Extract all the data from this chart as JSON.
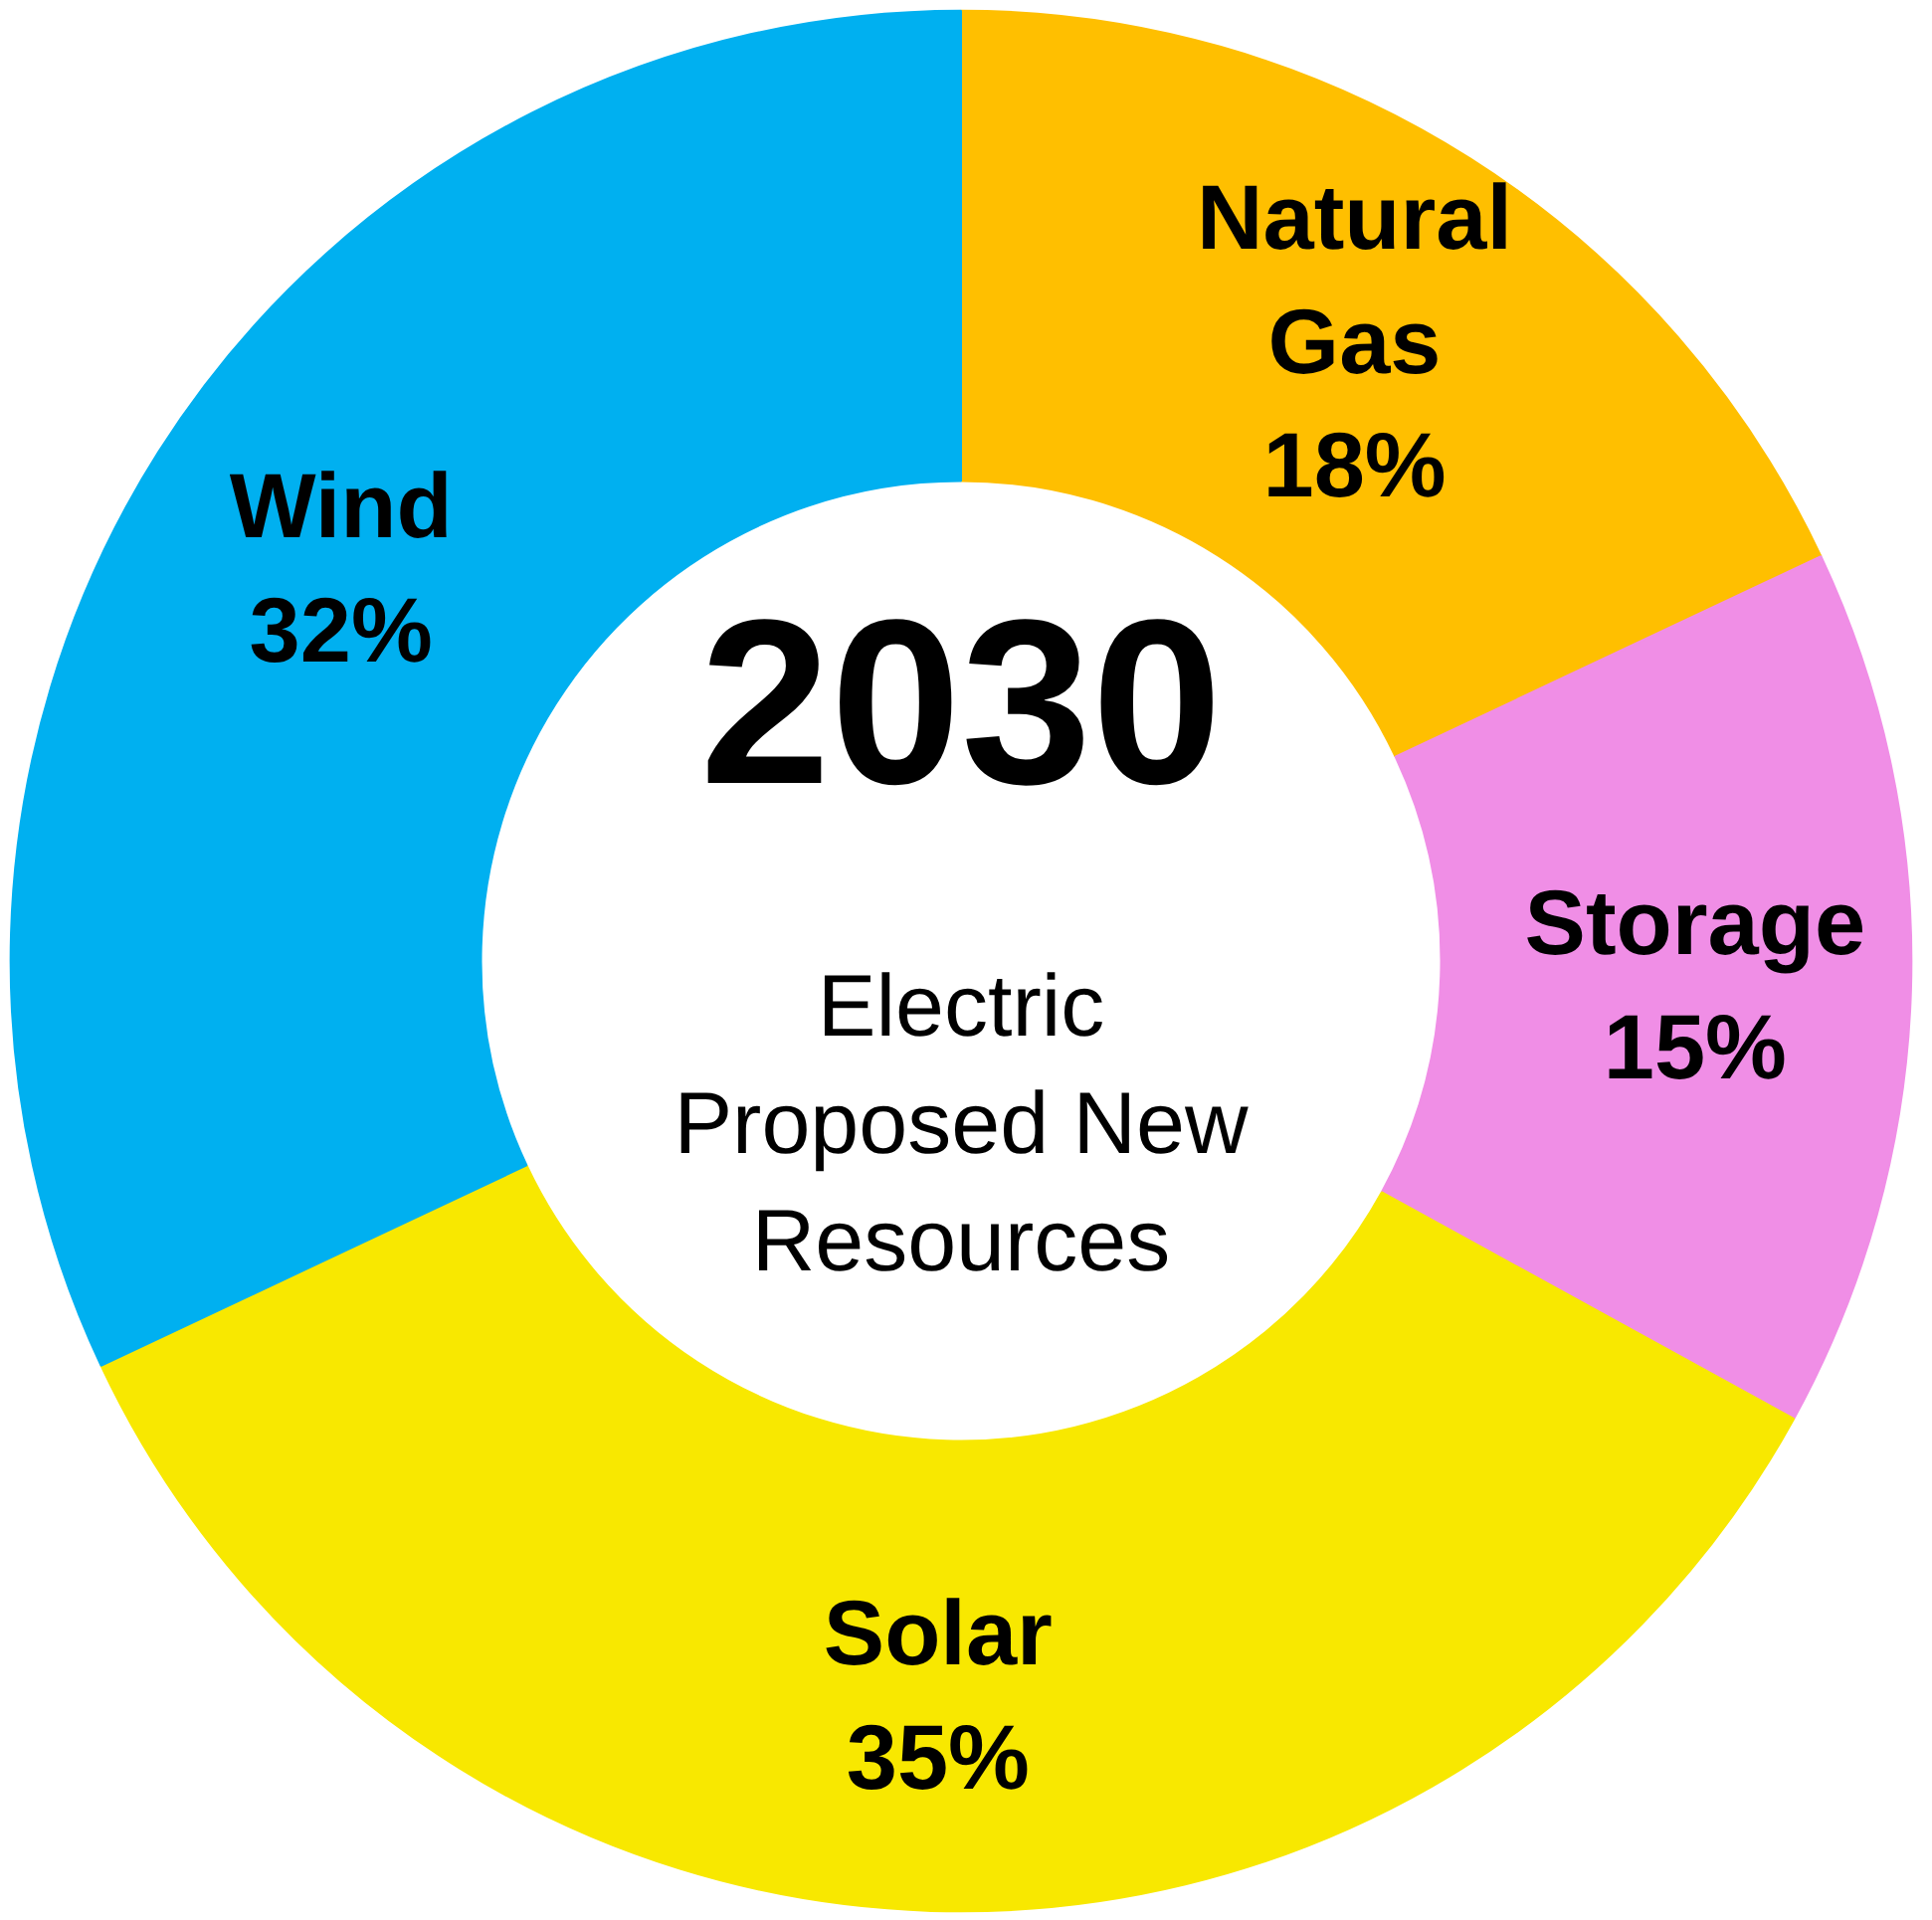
{
  "chart_data": {
    "type": "donut",
    "title": "2030",
    "subtitle": "Electric Proposed New Resources",
    "categories": [
      "Natural Gas",
      "Storage",
      "Solar",
      "Wind"
    ],
    "values": [
      18,
      15,
      35,
      32
    ],
    "value_labels": [
      "18%",
      "15%",
      "35%",
      "32%"
    ],
    "colors": [
      "#ffbf00",
      "#f08ee6",
      "#f8e800",
      "#00b0f0"
    ]
  }
}
